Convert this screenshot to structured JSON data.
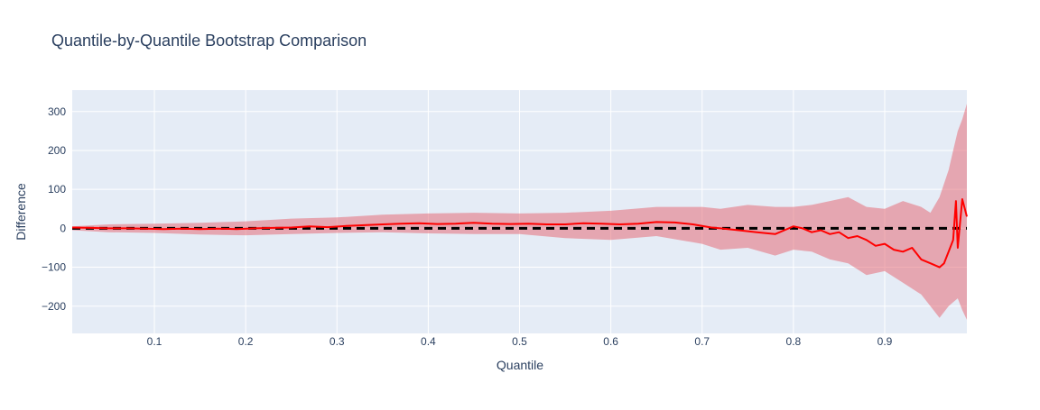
{
  "chart_data": {
    "type": "line",
    "title": "Quantile-by-Quantile Bootstrap Comparison",
    "xlabel": "Quantile",
    "ylabel": "Difference",
    "xlim": [
      0.01,
      0.99
    ],
    "ylim": [
      -270,
      355
    ],
    "grid": true,
    "legend": "none",
    "x_ticks": [
      0.1,
      0.2,
      0.3,
      0.4,
      0.5,
      0.6,
      0.7,
      0.8,
      0.9
    ],
    "x_tick_labels": [
      "0.1",
      "0.2",
      "0.3",
      "0.4",
      "0.5",
      "0.6",
      "0.7",
      "0.8",
      "0.9"
    ],
    "y_ticks": [
      -200,
      -100,
      0,
      100,
      200,
      300
    ],
    "y_tick_labels": [
      "−200",
      "−100",
      "0",
      "100",
      "200",
      "300"
    ],
    "colors": {
      "background": "#e5ecf6",
      "grid": "#ffffff",
      "line": "#ff0000",
      "band": "rgba(230,110,120,0.55)",
      "reference": "#000000",
      "text": "#2a3f5f"
    },
    "series": [
      {
        "kind": "line",
        "x": [
          0.01,
          0.03,
          0.05,
          0.07,
          0.09,
          0.11,
          0.13,
          0.15,
          0.17,
          0.19,
          0.21,
          0.23,
          0.25,
          0.27,
          0.29,
          0.31,
          0.33,
          0.35,
          0.37,
          0.39,
          0.41,
          0.43,
          0.45,
          0.47,
          0.49,
          0.51,
          0.53,
          0.55,
          0.57,
          0.59,
          0.61,
          0.63,
          0.65,
          0.67,
          0.69,
          0.71,
          0.72,
          0.74,
          0.76,
          0.78,
          0.79,
          0.8,
          0.81,
          0.82,
          0.83,
          0.84,
          0.85,
          0.86,
          0.87,
          0.88,
          0.89,
          0.9,
          0.91,
          0.92,
          0.93,
          0.94,
          0.95,
          0.96,
          0.965,
          0.97,
          0.975,
          0.978,
          0.98,
          0.985,
          0.99
        ],
        "y": [
          2,
          1,
          0,
          0,
          -1,
          -2,
          -1,
          -2,
          -1,
          -2,
          0,
          1,
          2,
          5,
          3,
          6,
          8,
          10,
          12,
          13,
          11,
          12,
          14,
          12,
          11,
          12,
          10,
          10,
          13,
          12,
          10,
          12,
          16,
          15,
          10,
          2,
          0,
          -5,
          -10,
          -15,
          -5,
          5,
          0,
          -10,
          -5,
          -15,
          -10,
          -25,
          -20,
          -30,
          -45,
          -40,
          -55,
          -60,
          -50,
          -80,
          -90,
          -100,
          -90,
          -60,
          -30,
          70,
          -50,
          75,
          30
        ]
      },
      {
        "kind": "band",
        "x": [
          0.01,
          0.05,
          0.1,
          0.15,
          0.2,
          0.25,
          0.3,
          0.35,
          0.4,
          0.45,
          0.5,
          0.55,
          0.6,
          0.65,
          0.7,
          0.72,
          0.75,
          0.78,
          0.8,
          0.82,
          0.84,
          0.86,
          0.88,
          0.9,
          0.92,
          0.94,
          0.95,
          0.96,
          0.97,
          0.975,
          0.98,
          0.985,
          0.99
        ],
        "upper": [
          5,
          10,
          12,
          14,
          18,
          25,
          28,
          35,
          38,
          40,
          38,
          40,
          45,
          55,
          55,
          50,
          60,
          55,
          55,
          60,
          70,
          80,
          55,
          50,
          70,
          55,
          40,
          80,
          150,
          200,
          250,
          280,
          320
        ],
        "lower": [
          -5,
          -10,
          -12,
          -16,
          -18,
          -15,
          -12,
          -10,
          -13,
          -15,
          -15,
          -25,
          -30,
          -20,
          -40,
          -55,
          -50,
          -70,
          -55,
          -60,
          -80,
          -90,
          -120,
          -110,
          -140,
          -170,
          -200,
          -230,
          -200,
          -190,
          -180,
          -210,
          -235
        ]
      },
      {
        "kind": "reference",
        "x": [
          0.01,
          0.99
        ],
        "y": [
          0,
          0
        ]
      }
    ]
  }
}
